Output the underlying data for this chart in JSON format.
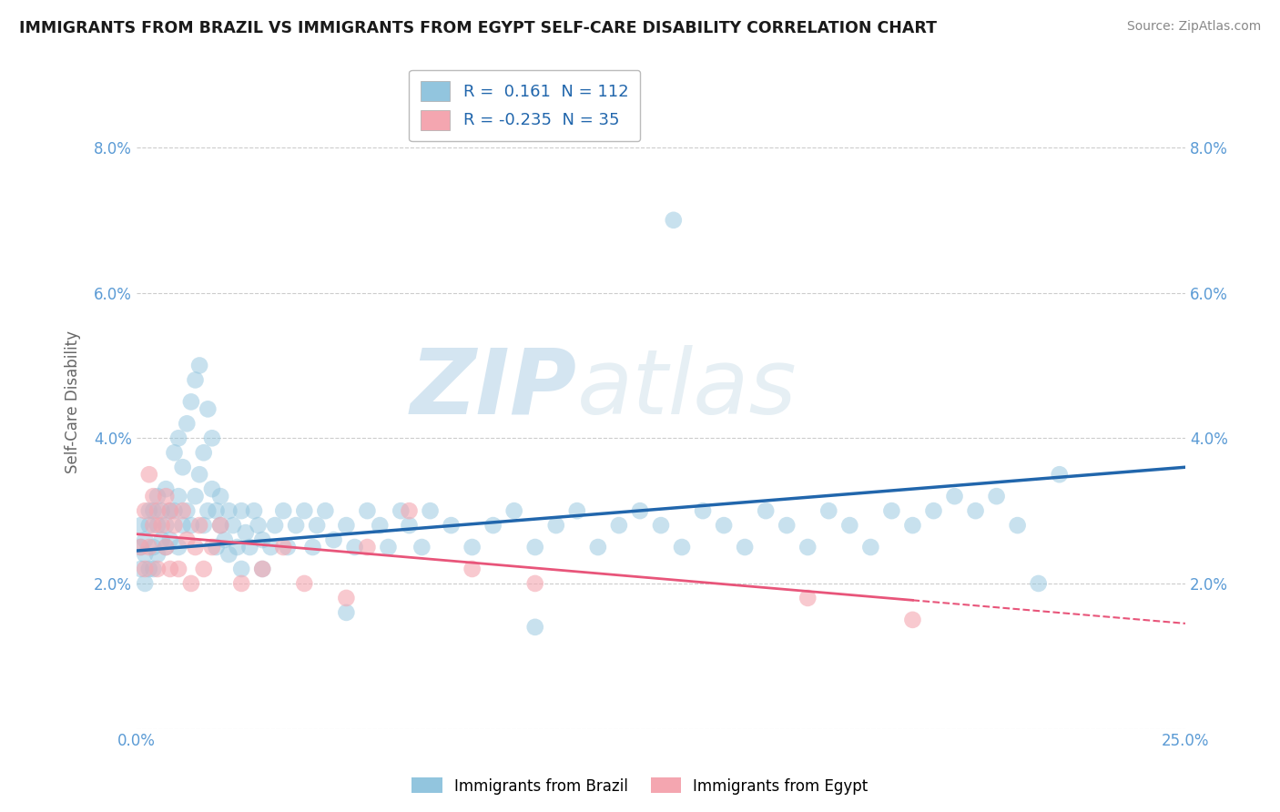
{
  "title": "IMMIGRANTS FROM BRAZIL VS IMMIGRANTS FROM EGYPT SELF-CARE DISABILITY CORRELATION CHART",
  "source": "Source: ZipAtlas.com",
  "ylabel": "Self-Care Disability",
  "legend_brazil": "Immigrants from Brazil",
  "legend_egypt": "Immigrants from Egypt",
  "R_brazil": 0.161,
  "N_brazil": 112,
  "R_egypt": -0.235,
  "N_egypt": 35,
  "brazil_color": "#92c5de",
  "egypt_color": "#f4a6b0",
  "trendline_brazil_color": "#2166ac",
  "trendline_egypt_color": "#e8557a",
  "brazil_scatter": [
    [
      0.001,
      0.025
    ],
    [
      0.001,
      0.022
    ],
    [
      0.001,
      0.028
    ],
    [
      0.002,
      0.02
    ],
    [
      0.002,
      0.026
    ],
    [
      0.002,
      0.024
    ],
    [
      0.003,
      0.022
    ],
    [
      0.003,
      0.028
    ],
    [
      0.003,
      0.03
    ],
    [
      0.004,
      0.025
    ],
    [
      0.004,
      0.022
    ],
    [
      0.004,
      0.03
    ],
    [
      0.005,
      0.028
    ],
    [
      0.005,
      0.024
    ],
    [
      0.005,
      0.032
    ],
    [
      0.006,
      0.026
    ],
    [
      0.006,
      0.03
    ],
    [
      0.007,
      0.028
    ],
    [
      0.007,
      0.025
    ],
    [
      0.007,
      0.033
    ],
    [
      0.008,
      0.03
    ],
    [
      0.008,
      0.026
    ],
    [
      0.009,
      0.03
    ],
    [
      0.009,
      0.038
    ],
    [
      0.01,
      0.032
    ],
    [
      0.01,
      0.025
    ],
    [
      0.01,
      0.04
    ],
    [
      0.011,
      0.028
    ],
    [
      0.011,
      0.036
    ],
    [
      0.012,
      0.042
    ],
    [
      0.012,
      0.03
    ],
    [
      0.013,
      0.045
    ],
    [
      0.013,
      0.028
    ],
    [
      0.014,
      0.048
    ],
    [
      0.014,
      0.032
    ],
    [
      0.015,
      0.05
    ],
    [
      0.015,
      0.035
    ],
    [
      0.016,
      0.038
    ],
    [
      0.016,
      0.028
    ],
    [
      0.017,
      0.044
    ],
    [
      0.017,
      0.03
    ],
    [
      0.018,
      0.04
    ],
    [
      0.018,
      0.033
    ],
    [
      0.019,
      0.03
    ],
    [
      0.019,
      0.025
    ],
    [
      0.02,
      0.032
    ],
    [
      0.02,
      0.028
    ],
    [
      0.021,
      0.026
    ],
    [
      0.022,
      0.03
    ],
    [
      0.022,
      0.024
    ],
    [
      0.023,
      0.028
    ],
    [
      0.024,
      0.025
    ],
    [
      0.025,
      0.03
    ],
    [
      0.025,
      0.022
    ],
    [
      0.026,
      0.027
    ],
    [
      0.027,
      0.025
    ],
    [
      0.028,
      0.03
    ],
    [
      0.029,
      0.028
    ],
    [
      0.03,
      0.026
    ],
    [
      0.03,
      0.022
    ],
    [
      0.032,
      0.025
    ],
    [
      0.033,
      0.028
    ],
    [
      0.035,
      0.03
    ],
    [
      0.036,
      0.025
    ],
    [
      0.038,
      0.028
    ],
    [
      0.04,
      0.03
    ],
    [
      0.042,
      0.025
    ],
    [
      0.043,
      0.028
    ],
    [
      0.045,
      0.03
    ],
    [
      0.047,
      0.026
    ],
    [
      0.05,
      0.028
    ],
    [
      0.052,
      0.025
    ],
    [
      0.055,
      0.03
    ],
    [
      0.058,
      0.028
    ],
    [
      0.06,
      0.025
    ],
    [
      0.063,
      0.03
    ],
    [
      0.065,
      0.028
    ],
    [
      0.068,
      0.025
    ],
    [
      0.07,
      0.03
    ],
    [
      0.075,
      0.028
    ],
    [
      0.08,
      0.025
    ],
    [
      0.085,
      0.028
    ],
    [
      0.09,
      0.03
    ],
    [
      0.095,
      0.025
    ],
    [
      0.1,
      0.028
    ],
    [
      0.105,
      0.03
    ],
    [
      0.11,
      0.025
    ],
    [
      0.115,
      0.028
    ],
    [
      0.12,
      0.03
    ],
    [
      0.125,
      0.028
    ],
    [
      0.128,
      0.07
    ],
    [
      0.13,
      0.025
    ],
    [
      0.135,
      0.03
    ],
    [
      0.14,
      0.028
    ],
    [
      0.145,
      0.025
    ],
    [
      0.15,
      0.03
    ],
    [
      0.155,
      0.028
    ],
    [
      0.16,
      0.025
    ],
    [
      0.165,
      0.03
    ],
    [
      0.17,
      0.028
    ],
    [
      0.175,
      0.025
    ],
    [
      0.18,
      0.03
    ],
    [
      0.185,
      0.028
    ],
    [
      0.19,
      0.03
    ],
    [
      0.195,
      0.032
    ],
    [
      0.2,
      0.03
    ],
    [
      0.205,
      0.032
    ],
    [
      0.21,
      0.028
    ],
    [
      0.215,
      0.02
    ],
    [
      0.22,
      0.035
    ],
    [
      0.05,
      0.016
    ],
    [
      0.095,
      0.014
    ]
  ],
  "egypt_scatter": [
    [
      0.001,
      0.025
    ],
    [
      0.002,
      0.03
    ],
    [
      0.002,
      0.022
    ],
    [
      0.003,
      0.035
    ],
    [
      0.003,
      0.025
    ],
    [
      0.004,
      0.032
    ],
    [
      0.004,
      0.028
    ],
    [
      0.005,
      0.03
    ],
    [
      0.005,
      0.022
    ],
    [
      0.006,
      0.028
    ],
    [
      0.007,
      0.032
    ],
    [
      0.007,
      0.025
    ],
    [
      0.008,
      0.03
    ],
    [
      0.008,
      0.022
    ],
    [
      0.009,
      0.028
    ],
    [
      0.01,
      0.022
    ],
    [
      0.011,
      0.03
    ],
    [
      0.012,
      0.026
    ],
    [
      0.013,
      0.02
    ],
    [
      0.014,
      0.025
    ],
    [
      0.015,
      0.028
    ],
    [
      0.016,
      0.022
    ],
    [
      0.018,
      0.025
    ],
    [
      0.02,
      0.028
    ],
    [
      0.025,
      0.02
    ],
    [
      0.03,
      0.022
    ],
    [
      0.035,
      0.025
    ],
    [
      0.04,
      0.02
    ],
    [
      0.05,
      0.018
    ],
    [
      0.055,
      0.025
    ],
    [
      0.065,
      0.03
    ],
    [
      0.08,
      0.022
    ],
    [
      0.095,
      0.02
    ],
    [
      0.16,
      0.018
    ],
    [
      0.185,
      0.015
    ]
  ],
  "xlim": [
    0.0,
    0.25
  ],
  "ylim": [
    0.0,
    0.09
  ],
  "yticks": [
    0.0,
    0.02,
    0.04,
    0.06,
    0.08
  ],
  "ytick_labels": [
    "",
    "2.0%",
    "4.0%",
    "6.0%",
    "8.0%"
  ],
  "xtick_labels": [
    "0.0%",
    "25.0%"
  ],
  "trendline_brazil_x0": 0.0,
  "trendline_brazil_y0": 0.0245,
  "trendline_brazil_x1": 0.25,
  "trendline_brazil_y1": 0.036,
  "trendline_egypt_x0": 0.0,
  "trendline_egypt_y0": 0.0268,
  "trendline_egypt_x1": 0.25,
  "trendline_egypt_y1": 0.0145,
  "watermark_zip": "ZIP",
  "watermark_atlas": "atlas",
  "background_color": "#ffffff",
  "grid_color": "#cccccc"
}
